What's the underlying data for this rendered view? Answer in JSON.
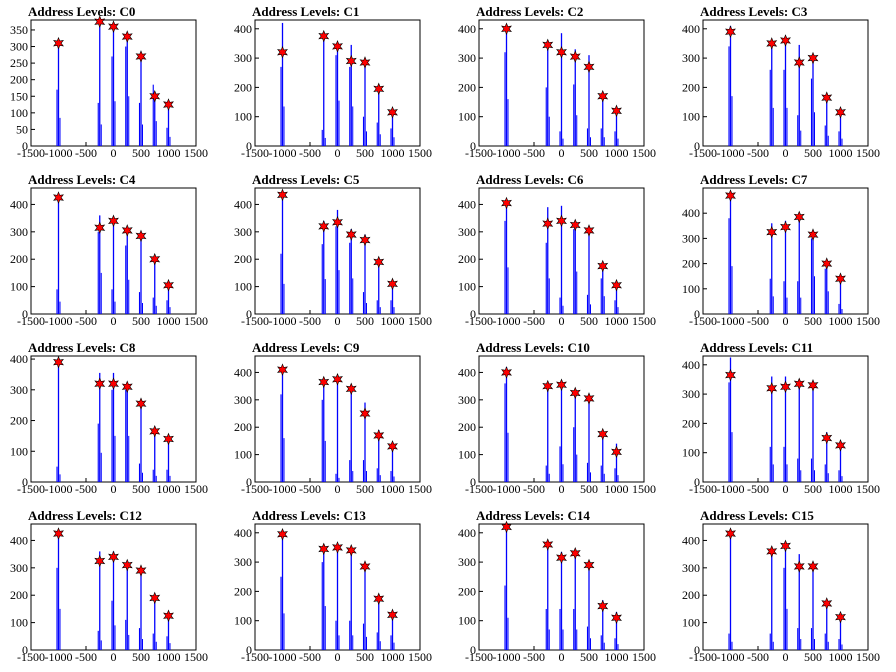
{
  "figure": {
    "background": "#ffffff",
    "bar_color": "#0000ff",
    "peak_marker_fill": "#ff0000",
    "peak_marker_stroke": "#000000",
    "peak_marker_shape": "star"
  },
  "chart_data": [
    {
      "type": "bar",
      "title": "Address Levels: C0",
      "xlim": [
        -1500,
        1500
      ],
      "ylim": [
        0,
        380
      ],
      "xticks": [
        -1500,
        -1000,
        -500,
        0,
        500,
        1000,
        1500
      ],
      "xtick_labels": [
        "-1500",
        "-1000",
        "-500",
        "0",
        "500",
        "1000",
        "1500"
      ],
      "yticks": [
        0,
        50,
        100,
        150,
        200,
        250,
        300,
        350
      ],
      "ytick_labels": [
        "0",
        "50",
        "100",
        "150",
        "200",
        "250",
        "300",
        "350"
      ],
      "x": [
        -1000,
        -250,
        0,
        250,
        500,
        750,
        1000
      ],
      "main_peaks": [
        310,
        375,
        360,
        330,
        270,
        150,
        125
      ],
      "side_peaks": [
        170,
        130,
        270,
        300,
        130,
        185,
        55
      ],
      "stars": [
        310,
        375,
        360,
        330,
        270,
        150,
        125
      ]
    },
    {
      "type": "bar",
      "title": "Address Levels: C1",
      "xlim": [
        -1500,
        1500
      ],
      "ylim": [
        0,
        430
      ],
      "xticks": [
        -1500,
        -1000,
        -500,
        0,
        500,
        1000,
        1500
      ],
      "xtick_labels": [
        "-1500",
        "-1000",
        "-500",
        "0",
        "500",
        "1000",
        "1500"
      ],
      "yticks": [
        0,
        100,
        200,
        300,
        400
      ],
      "ytick_labels": [
        "0",
        "100",
        "200",
        "300",
        "400"
      ],
      "x": [
        -1000,
        -250,
        0,
        250,
        500,
        750,
        1000
      ],
      "main_peaks": [
        420,
        380,
        345,
        345,
        290,
        200,
        120
      ],
      "side_peaks": [
        270,
        55,
        310,
        270,
        100,
        80,
        60
      ],
      "stars": [
        320,
        375,
        340,
        290,
        285,
        195,
        115
      ]
    },
    {
      "type": "bar",
      "title": "Address Levels: C2",
      "xlim": [
        -1500,
        1500
      ],
      "ylim": [
        0,
        430
      ],
      "xticks": [
        -1500,
        -1000,
        -500,
        0,
        500,
        1000,
        1500
      ],
      "xtick_labels": [
        "-1500",
        "-1000",
        "-500",
        "0",
        "500",
        "1000",
        "1500"
      ],
      "yticks": [
        0,
        100,
        200,
        300,
        400
      ],
      "ytick_labels": [
        "0",
        "100",
        "200",
        "300",
        "400"
      ],
      "x": [
        -1000,
        -250,
        0,
        250,
        500,
        750,
        1000
      ],
      "main_peaks": [
        405,
        355,
        385,
        330,
        310,
        180,
        120
      ],
      "side_peaks": [
        320,
        200,
        50,
        210,
        60,
        60,
        50
      ],
      "stars": [
        400,
        345,
        320,
        305,
        270,
        170,
        120
      ]
    },
    {
      "type": "bar",
      "title": "Address Levels: C3",
      "xlim": [
        -1500,
        1500
      ],
      "ylim": [
        0,
        430
      ],
      "xticks": [
        -1500,
        -1000,
        -500,
        0,
        500,
        1000,
        1500
      ],
      "xtick_labels": [
        "-1500",
        "-1000",
        "-500",
        "0",
        "500",
        "1000",
        "1500"
      ],
      "yticks": [
        0,
        100,
        200,
        300,
        400
      ],
      "ytick_labels": [
        "0",
        "100",
        "200",
        "300",
        "400"
      ],
      "x": [
        -1000,
        -250,
        0,
        250,
        500,
        750,
        1000
      ],
      "main_peaks": [
        410,
        360,
        370,
        345,
        300,
        175,
        120
      ],
      "side_peaks": [
        340,
        260,
        260,
        105,
        230,
        70,
        50
      ],
      "stars": [
        390,
        350,
        360,
        285,
        300,
        165,
        115
      ]
    },
    {
      "type": "bar",
      "title": "Address Levels: C4",
      "xlim": [
        -1500,
        1500
      ],
      "ylim": [
        0,
        460
      ],
      "xticks": [
        -1500,
        -1000,
        -500,
        0,
        500,
        1000,
        1500
      ],
      "xtick_labels": [
        "-1500",
        "-1000",
        "-500",
        "0",
        "500",
        "1000",
        "1500"
      ],
      "yticks": [
        0,
        100,
        200,
        300,
        400
      ],
      "ytick_labels": [
        "0",
        "100",
        "200",
        "300",
        "400"
      ],
      "x": [
        -1000,
        -250,
        0,
        250,
        500,
        750,
        1000
      ],
      "main_peaks": [
        430,
        360,
        345,
        310,
        300,
        210,
        120
      ],
      "side_peaks": [
        90,
        300,
        90,
        250,
        80,
        60,
        50
      ],
      "stars": [
        425,
        315,
        340,
        305,
        285,
        200,
        105
      ]
    },
    {
      "type": "bar",
      "title": "Address Levels: C5",
      "xlim": [
        -1500,
        1500
      ],
      "ylim": [
        0,
        460
      ],
      "xticks": [
        -1500,
        -1000,
        -500,
        0,
        500,
        1000,
        1500
      ],
      "xtick_labels": [
        "-1500",
        "-1000",
        "-500",
        "0",
        "500",
        "1000",
        "1500"
      ],
      "yticks": [
        0,
        100,
        200,
        300,
        400
      ],
      "ytick_labels": [
        "0",
        "100",
        "200",
        "300",
        "400"
      ],
      "x": [
        -1000,
        -250,
        0,
        250,
        500,
        750,
        1000
      ],
      "main_peaks": [
        440,
        340,
        380,
        310,
        290,
        200,
        120
      ],
      "side_peaks": [
        220,
        255,
        320,
        260,
        80,
        50,
        50
      ],
      "stars": [
        435,
        320,
        335,
        290,
        270,
        190,
        110
      ]
    },
    {
      "type": "bar",
      "title": "Address Levels: C6",
      "xlim": [
        -1500,
        1500
      ],
      "ylim": [
        0,
        460
      ],
      "xticks": [
        -1500,
        -1000,
        -500,
        0,
        500,
        1000,
        1500
      ],
      "xtick_labels": [
        "-1500",
        "-1000",
        "-500",
        "0",
        "500",
        "1000",
        "1500"
      ],
      "yticks": [
        0,
        100,
        200,
        300,
        400
      ],
      "ytick_labels": [
        "0",
        "100",
        "200",
        "300",
        "400"
      ],
      "x": [
        -1000,
        -250,
        0,
        250,
        500,
        750,
        1000
      ],
      "main_peaks": [
        410,
        390,
        395,
        330,
        320,
        180,
        120
      ],
      "side_peaks": [
        340,
        260,
        60,
        310,
        70,
        130,
        50
      ],
      "stars": [
        405,
        330,
        340,
        325,
        305,
        175,
        105
      ]
    },
    {
      "type": "bar",
      "title": "Address Levels: C7",
      "xlim": [
        -1500,
        1500
      ],
      "ylim": [
        0,
        500
      ],
      "xticks": [
        -1500,
        -1000,
        -500,
        0,
        500,
        1000,
        1500
      ],
      "xtick_labels": [
        "-1500",
        "-1000",
        "-500",
        "0",
        "500",
        "1000",
        "1500"
      ],
      "yticks": [
        0,
        100,
        200,
        300,
        400
      ],
      "ytick_labels": [
        "0",
        "100",
        "200",
        "300",
        "400"
      ],
      "x": [
        -1000,
        -250,
        0,
        250,
        500,
        750,
        1000
      ],
      "main_peaks": [
        480,
        360,
        370,
        390,
        320,
        210,
        145
      ],
      "side_peaks": [
        380,
        140,
        130,
        130,
        300,
        180,
        40
      ],
      "stars": [
        470,
        325,
        345,
        385,
        315,
        200,
        140
      ]
    },
    {
      "type": "bar",
      "title": "Address Levels: C8",
      "xlim": [
        -1500,
        1500
      ],
      "ylim": [
        0,
        410
      ],
      "xticks": [
        -1500,
        -1000,
        -500,
        0,
        500,
        1000,
        1500
      ],
      "xtick_labels": [
        "-1500",
        "-1000",
        "-500",
        "0",
        "500",
        "1000",
        "1500"
      ],
      "yticks": [
        0,
        100,
        200,
        300,
        400
      ],
      "ytick_labels": [
        "0",
        "100",
        "200",
        "300",
        "400"
      ],
      "x": [
        -1000,
        -250,
        0,
        250,
        500,
        750,
        1000
      ],
      "main_peaks": [
        395,
        355,
        355,
        315,
        265,
        175,
        145
      ],
      "side_peaks": [
        50,
        190,
        300,
        300,
        60,
        40,
        40
      ],
      "stars": [
        390,
        320,
        320,
        310,
        255,
        165,
        140
      ]
    },
    {
      "type": "bar",
      "title": "Address Levels: C9",
      "xlim": [
        -1500,
        1500
      ],
      "ylim": [
        0,
        460
      ],
      "xticks": [
        -1500,
        -1000,
        -500,
        0,
        500,
        1000,
        1500
      ],
      "xtick_labels": [
        "-1500",
        "-1000",
        "-500",
        "0",
        "500",
        "1000",
        "1500"
      ],
      "yticks": [
        0,
        100,
        200,
        300,
        400
      ],
      "ytick_labels": [
        "0",
        "100",
        "200",
        "300",
        "400"
      ],
      "x": [
        -1000,
        -250,
        0,
        250,
        500,
        750,
        1000
      ],
      "main_peaks": [
        420,
        375,
        385,
        350,
        290,
        190,
        140
      ],
      "side_peaks": [
        320,
        300,
        30,
        80,
        80,
        50,
        40
      ],
      "stars": [
        410,
        365,
        375,
        340,
        250,
        170,
        130
      ]
    },
    {
      "type": "bar",
      "title": "Address Levels: C10",
      "xlim": [
        -1500,
        1500
      ],
      "ylim": [
        0,
        460
      ],
      "xticks": [
        -1500,
        -1000,
        -500,
        0,
        500,
        1000,
        1500
      ],
      "xtick_labels": [
        "-1500",
        "-1000",
        "-500",
        "0",
        "500",
        "1000",
        "1500"
      ],
      "yticks": [
        0,
        100,
        200,
        300,
        400
      ],
      "ytick_labels": [
        "0",
        "100",
        "200",
        "300",
        "400"
      ],
      "x": [
        -1000,
        -250,
        0,
        250,
        500,
        750,
        1000
      ],
      "main_peaks": [
        420,
        360,
        350,
        335,
        310,
        190,
        140
      ],
      "side_peaks": [
        360,
        60,
        130,
        200,
        70,
        60,
        50
      ],
      "stars": [
        400,
        350,
        355,
        325,
        305,
        175,
        110
      ]
    },
    {
      "type": "bar",
      "title": "Address Levels: C11",
      "xlim": [
        -1500,
        1500
      ],
      "ylim": [
        0,
        430
      ],
      "xticks": [
        -1500,
        -1000,
        -500,
        0,
        500,
        1000,
        1500
      ],
      "xtick_labels": [
        "-1500",
        "-1000",
        "-500",
        "0",
        "500",
        "1000",
        "1500"
      ],
      "yticks": [
        0,
        100,
        200,
        300,
        400
      ],
      "ytick_labels": [
        "0",
        "100",
        "200",
        "300",
        "400"
      ],
      "x": [
        -1000,
        -250,
        0,
        250,
        500,
        750,
        1000
      ],
      "main_peaks": [
        425,
        360,
        360,
        345,
        330,
        170,
        130
      ],
      "side_peaks": [
        340,
        120,
        120,
        80,
        80,
        60,
        40
      ],
      "stars": [
        365,
        320,
        325,
        335,
        330,
        150,
        125
      ]
    },
    {
      "type": "bar",
      "title": "Address Levels: C12",
      "xlim": [
        -1500,
        1500
      ],
      "ylim": [
        0,
        460
      ],
      "xticks": [
        -1500,
        -1000,
        -500,
        0,
        500,
        1000,
        1500
      ],
      "xtick_labels": [
        "-1500",
        "-1000",
        "-500",
        "0",
        "500",
        "1000",
        "1500"
      ],
      "yticks": [
        0,
        100,
        200,
        300,
        400
      ],
      "ytick_labels": [
        "0",
        "100",
        "200",
        "300",
        "400"
      ],
      "x": [
        -1000,
        -250,
        0,
        250,
        500,
        750,
        1000
      ],
      "main_peaks": [
        430,
        360,
        360,
        320,
        300,
        200,
        135
      ],
      "side_peaks": [
        300,
        70,
        180,
        110,
        80,
        60,
        50
      ],
      "stars": [
        425,
        325,
        340,
        310,
        290,
        190,
        125
      ]
    },
    {
      "type": "bar",
      "title": "Address Levels: C13",
      "xlim": [
        -1500,
        1500
      ],
      "ylim": [
        0,
        430
      ],
      "xticks": [
        -1500,
        -1000,
        -500,
        0,
        500,
        1000,
        1500
      ],
      "xtick_labels": [
        "-1500",
        "-1000",
        "-500",
        "0",
        "500",
        "1000",
        "1500"
      ],
      "yticks": [
        0,
        100,
        200,
        300,
        400
      ],
      "ytick_labels": [
        "0",
        "100",
        "200",
        "300",
        "400"
      ],
      "x": [
        -1000,
        -250,
        0,
        250,
        500,
        750,
        1000
      ],
      "main_peaks": [
        400,
        350,
        360,
        345,
        290,
        190,
        130
      ],
      "side_peaks": [
        250,
        300,
        100,
        100,
        90,
        60,
        50
      ],
      "stars": [
        395,
        345,
        350,
        340,
        285,
        175,
        120
      ]
    },
    {
      "type": "bar",
      "title": "Address Levels: C14",
      "xlim": [
        -1500,
        1500
      ],
      "ylim": [
        0,
        430
      ],
      "xticks": [
        -1500,
        -1000,
        -500,
        0,
        500,
        1000,
        1500
      ],
      "xtick_labels": [
        "-1500",
        "-1000",
        "-500",
        "0",
        "500",
        "1000",
        "1500"
      ],
      "yticks": [
        0,
        100,
        200,
        300,
        400
      ],
      "ytick_labels": [
        "0",
        "100",
        "200",
        "300",
        "400"
      ],
      "x": [
        -1000,
        -250,
        0,
        250,
        500,
        750,
        1000
      ],
      "main_peaks": [
        425,
        370,
        335,
        330,
        300,
        170,
        130
      ],
      "side_peaks": [
        220,
        140,
        140,
        140,
        80,
        50,
        40
      ],
      "stars": [
        420,
        360,
        315,
        330,
        290,
        150,
        110
      ]
    },
    {
      "type": "bar",
      "title": "Address Levels: C15",
      "xlim": [
        -1500,
        1500
      ],
      "ylim": [
        0,
        460
      ],
      "xticks": [
        -1500,
        -1000,
        -500,
        0,
        500,
        1000,
        1500
      ],
      "xtick_labels": [
        "-1500",
        "-1000",
        "-500",
        "0",
        "500",
        "1000",
        "1500"
      ],
      "yticks": [
        0,
        100,
        200,
        300,
        400
      ],
      "ytick_labels": [
        "0",
        "100",
        "200",
        "300",
        "400"
      ],
      "x": [
        -1000,
        -250,
        0,
        250,
        500,
        750,
        1000
      ],
      "main_peaks": [
        430,
        375,
        390,
        350,
        310,
        180,
        130
      ],
      "side_peaks": [
        60,
        60,
        300,
        80,
        80,
        60,
        40
      ],
      "stars": [
        425,
        360,
        380,
        305,
        305,
        170,
        120
      ]
    }
  ]
}
